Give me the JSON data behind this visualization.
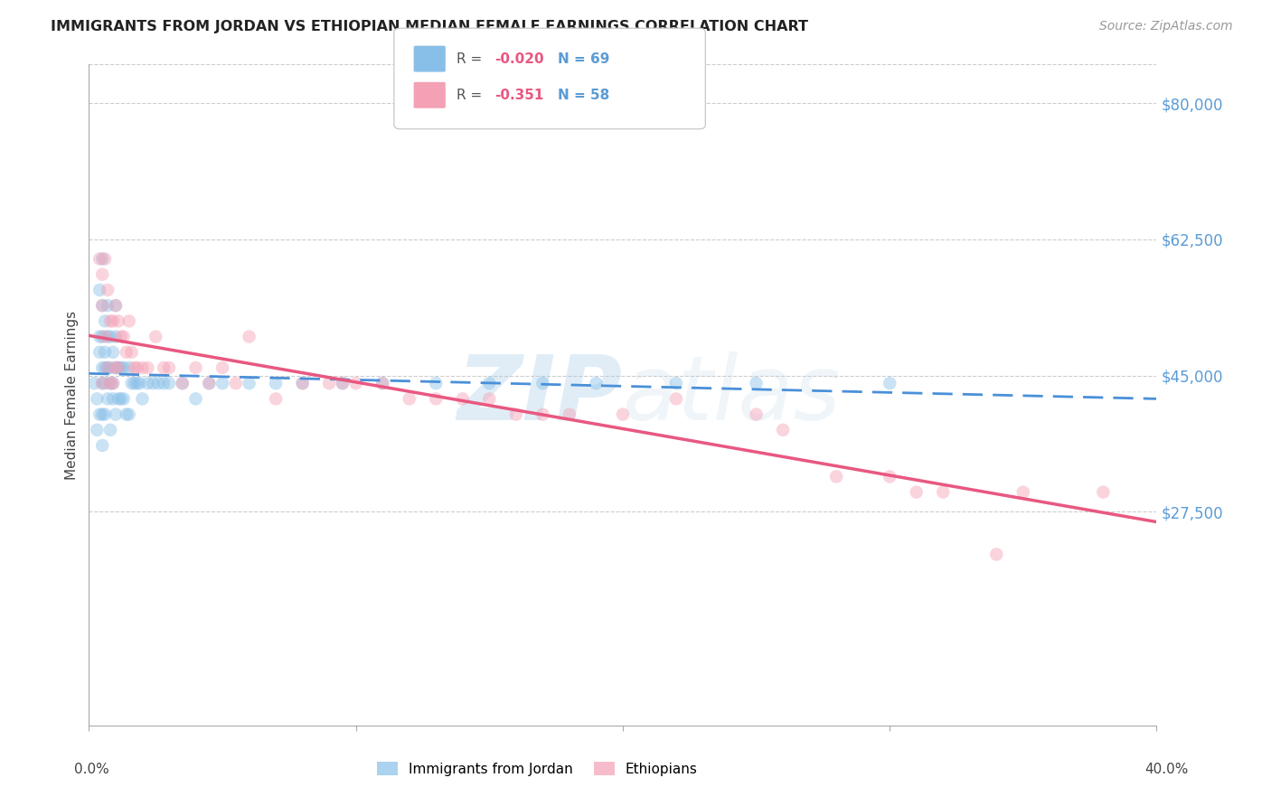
{
  "title": "IMMIGRANTS FROM JORDAN VS ETHIOPIAN MEDIAN FEMALE EARNINGS CORRELATION CHART",
  "source": "Source: ZipAtlas.com",
  "ylabel": "Median Female Earnings",
  "watermark_zip": "ZIP",
  "watermark_atlas": "atlas",
  "ylim": [
    0,
    85000
  ],
  "xlim": [
    0.0,
    0.4
  ],
  "yticks": [
    27500,
    45000,
    62500,
    80000
  ],
  "ytick_labels": [
    "$27,500",
    "$45,000",
    "$62,500",
    "$80,000"
  ],
  "grid_color": "#cccccc",
  "bg_color": "#ffffff",
  "scatter_alpha": 0.45,
  "scatter_size": 110,
  "jordan_color": "#88bfe8",
  "ethiopian_color": "#f4a0b5",
  "jordan_line_color": "#4a90d9",
  "ethiopian_line_color": "#e85880",
  "jordan_R": "-0.020",
  "jordan_N": "69",
  "ethiopian_R": "-0.351",
  "ethiopian_N": "58",
  "legend1_label": "Immigrants from Jordan",
  "legend2_label": "Ethiopians",
  "jordan_points_x": [
    0.002,
    0.003,
    0.003,
    0.004,
    0.004,
    0.004,
    0.004,
    0.005,
    0.005,
    0.005,
    0.005,
    0.005,
    0.005,
    0.005,
    0.006,
    0.006,
    0.006,
    0.006,
    0.006,
    0.007,
    0.007,
    0.007,
    0.007,
    0.008,
    0.008,
    0.008,
    0.008,
    0.009,
    0.009,
    0.009,
    0.01,
    0.01,
    0.01,
    0.01,
    0.011,
    0.011,
    0.012,
    0.012,
    0.013,
    0.013,
    0.014,
    0.015,
    0.015,
    0.016,
    0.017,
    0.018,
    0.019,
    0.02,
    0.022,
    0.024,
    0.026,
    0.028,
    0.03,
    0.035,
    0.04,
    0.045,
    0.05,
    0.06,
    0.07,
    0.08,
    0.095,
    0.11,
    0.13,
    0.15,
    0.17,
    0.19,
    0.22,
    0.25,
    0.3
  ],
  "jordan_points_y": [
    44000,
    42000,
    38000,
    56000,
    50000,
    48000,
    40000,
    60000,
    54000,
    50000,
    46000,
    44000,
    40000,
    36000,
    52000,
    48000,
    46000,
    44000,
    40000,
    54000,
    50000,
    46000,
    42000,
    50000,
    46000,
    44000,
    38000,
    48000,
    44000,
    42000,
    54000,
    50000,
    46000,
    40000,
    46000,
    42000,
    46000,
    42000,
    46000,
    42000,
    40000,
    46000,
    40000,
    44000,
    44000,
    44000,
    44000,
    42000,
    44000,
    44000,
    44000,
    44000,
    44000,
    44000,
    42000,
    44000,
    44000,
    44000,
    44000,
    44000,
    44000,
    44000,
    44000,
    44000,
    44000,
    44000,
    44000,
    44000,
    44000
  ],
  "ethiopian_points_x": [
    0.004,
    0.005,
    0.005,
    0.005,
    0.006,
    0.006,
    0.007,
    0.007,
    0.008,
    0.008,
    0.009,
    0.009,
    0.01,
    0.01,
    0.011,
    0.011,
    0.012,
    0.013,
    0.014,
    0.015,
    0.016,
    0.017,
    0.018,
    0.02,
    0.022,
    0.025,
    0.028,
    0.03,
    0.035,
    0.04,
    0.05,
    0.06,
    0.08,
    0.09,
    0.1,
    0.11,
    0.12,
    0.13,
    0.15,
    0.16,
    0.17,
    0.18,
    0.2,
    0.22,
    0.25,
    0.28,
    0.3,
    0.32,
    0.35,
    0.38,
    0.045,
    0.055,
    0.07,
    0.095,
    0.14,
    0.26,
    0.31,
    0.34
  ],
  "ethiopian_points_y": [
    60000,
    58000,
    54000,
    44000,
    60000,
    50000,
    56000,
    46000,
    52000,
    44000,
    52000,
    44000,
    54000,
    46000,
    52000,
    46000,
    50000,
    50000,
    48000,
    52000,
    48000,
    46000,
    46000,
    46000,
    46000,
    50000,
    46000,
    46000,
    44000,
    46000,
    46000,
    50000,
    44000,
    44000,
    44000,
    44000,
    42000,
    42000,
    42000,
    40000,
    40000,
    40000,
    40000,
    42000,
    40000,
    32000,
    32000,
    30000,
    30000,
    30000,
    44000,
    44000,
    42000,
    44000,
    42000,
    38000,
    30000,
    22000
  ]
}
